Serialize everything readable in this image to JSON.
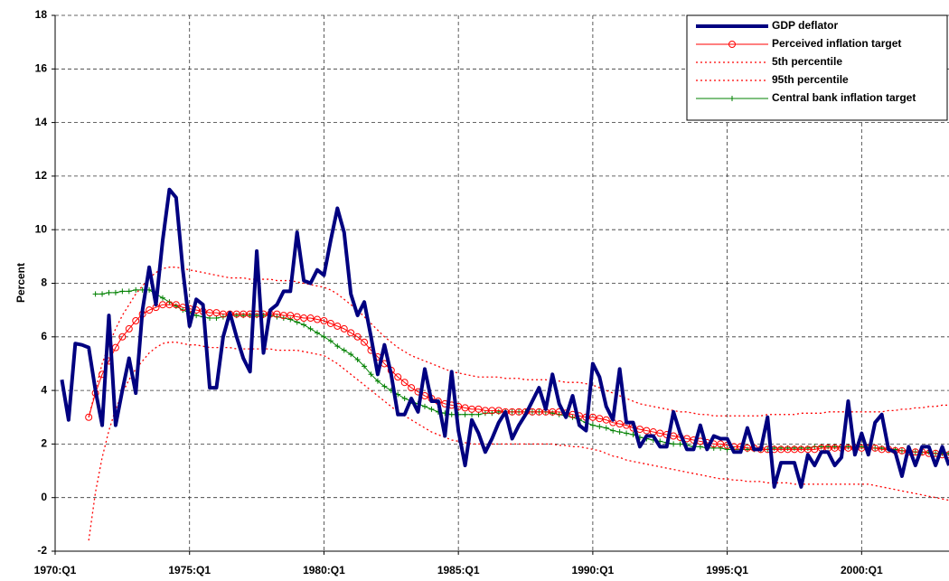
{
  "chart_data": {
    "type": "line",
    "y_label": "Percent",
    "categories": [
      "1970:Q1",
      null,
      null,
      null,
      null,
      null,
      null,
      null,
      null,
      null,
      null,
      null,
      null,
      null,
      null,
      null,
      null,
      null,
      null,
      null,
      "1975:Q1",
      null,
      null,
      null,
      null,
      null,
      null,
      null,
      null,
      null,
      null,
      null,
      null,
      null,
      null,
      null,
      null,
      null,
      null,
      null,
      "1980:Q1",
      null,
      null,
      null,
      null,
      null,
      null,
      null,
      null,
      null,
      null,
      null,
      null,
      null,
      null,
      null,
      null,
      null,
      null,
      null,
      "1985:Q1",
      null,
      null,
      null,
      null,
      null,
      null,
      null,
      null,
      null,
      null,
      null,
      null,
      null,
      null,
      null,
      null,
      null,
      null,
      null,
      "1990:Q1",
      null,
      null,
      null,
      null,
      null,
      null,
      null,
      null,
      null,
      null,
      null,
      null,
      null,
      null,
      null,
      null,
      null,
      null,
      null,
      "1995:Q1",
      null,
      null,
      null,
      null,
      null,
      null,
      null,
      null,
      null,
      null,
      null,
      null,
      null,
      null,
      null,
      null,
      null,
      null,
      null,
      "2000:Q1",
      null,
      null,
      null,
      null,
      null,
      null,
      null,
      null,
      null,
      null,
      null,
      null,
      null
    ],
    "ylim": [
      -2,
      18
    ],
    "yticks": [
      -2,
      0,
      2,
      4,
      6,
      8,
      10,
      12,
      14,
      16,
      18
    ],
    "grid": true,
    "legend": "top-right",
    "series": [
      {
        "name": "GDP deflator",
        "color": "#000080",
        "width": 4,
        "dash": false,
        "marker": "none",
        "values": [
          null,
          4.4,
          2.9,
          5.75,
          5.7,
          5.6,
          4.0,
          2.7,
          6.8,
          2.7,
          4.0,
          5.2,
          3.9,
          7.0,
          8.6,
          7.2,
          9.6,
          11.5,
          11.2,
          8.5,
          6.4,
          7.4,
          7.2,
          4.1,
          4.1,
          6.0,
          6.9,
          6.0,
          5.2,
          4.7,
          9.2,
          5.4,
          7.0,
          7.2,
          7.7,
          7.7,
          9.9,
          8.1,
          8.0,
          8.5,
          8.3,
          9.6,
          10.8,
          9.9,
          7.6,
          6.8,
          7.3,
          6.0,
          4.6,
          5.7,
          4.6,
          3.1,
          3.1,
          3.7,
          3.2,
          4.8,
          3.6,
          3.6,
          2.3,
          4.7,
          2.5,
          1.2,
          2.9,
          2.4,
          1.7,
          2.2,
          2.8,
          3.2,
          2.2,
          2.7,
          3.1,
          3.6,
          4.1,
          3.3,
          4.6,
          3.5,
          3.0,
          3.8,
          2.7,
          2.5,
          5.0,
          4.5,
          3.4,
          2.9,
          4.8,
          2.8,
          2.8,
          1.9,
          2.3,
          2.3,
          1.9,
          1.9,
          3.2,
          2.4,
          1.8,
          1.8,
          2.7,
          1.8,
          2.3,
          2.2,
          2.2,
          1.7,
          1.7,
          2.6,
          1.8,
          1.8,
          3.0,
          0.4,
          1.3,
          1.3,
          1.3,
          0.4,
          1.6,
          1.2,
          1.7,
          1.7,
          1.2,
          1.5,
          3.6,
          1.6,
          2.4,
          1.6,
          2.8,
          3.1,
          1.8,
          1.7,
          0.8,
          1.9,
          1.2,
          1.9,
          1.9,
          1.2,
          1.9,
          1.2
        ]
      },
      {
        "name": "Perceived inflation target",
        "color": "#ff0000",
        "width": 1,
        "dash": false,
        "marker": "circle",
        "values": [
          null,
          null,
          null,
          null,
          null,
          3.0,
          3.9,
          4.6,
          5.1,
          5.6,
          6.0,
          6.3,
          6.6,
          6.85,
          7.0,
          7.1,
          7.2,
          7.2,
          7.2,
          7.1,
          7.05,
          7.0,
          6.95,
          6.9,
          6.9,
          6.85,
          6.85,
          6.85,
          6.85,
          6.85,
          6.85,
          6.85,
          6.85,
          6.85,
          6.8,
          6.8,
          6.75,
          6.7,
          6.7,
          6.65,
          6.6,
          6.5,
          6.4,
          6.3,
          6.15,
          6.0,
          5.8,
          5.5,
          5.25,
          5.0,
          4.75,
          4.5,
          4.3,
          4.1,
          3.95,
          3.8,
          3.7,
          3.6,
          3.5,
          3.45,
          3.4,
          3.35,
          3.3,
          3.3,
          3.25,
          3.25,
          3.25,
          3.2,
          3.2,
          3.2,
          3.2,
          3.2,
          3.2,
          3.2,
          3.2,
          3.2,
          3.15,
          3.1,
          3.05,
          3.0,
          3.0,
          2.95,
          2.9,
          2.8,
          2.75,
          2.7,
          2.6,
          2.55,
          2.5,
          2.45,
          2.4,
          2.35,
          2.3,
          2.25,
          2.2,
          2.15,
          2.1,
          2.05,
          2.0,
          2.0,
          1.95,
          1.9,
          1.9,
          1.85,
          1.85,
          1.8,
          1.8,
          1.8,
          1.8,
          1.8,
          1.8,
          1.8,
          1.8,
          1.8,
          1.85,
          1.85,
          1.85,
          1.85,
          1.85,
          1.85,
          1.85,
          1.85,
          1.85,
          1.8,
          1.8,
          1.75,
          1.75,
          1.7,
          1.7,
          1.7,
          1.65,
          1.65,
          1.6,
          1.6
        ]
      },
      {
        "name": "5th percentile",
        "color": "#ff0000",
        "width": 1.3,
        "dash": true,
        "marker": "none",
        "values": [
          null,
          null,
          null,
          null,
          null,
          -1.6,
          0.2,
          1.5,
          2.5,
          3.3,
          3.9,
          4.4,
          4.8,
          5.1,
          5.4,
          5.6,
          5.75,
          5.8,
          5.8,
          5.75,
          5.7,
          5.7,
          5.65,
          5.6,
          5.6,
          5.6,
          5.6,
          5.55,
          5.55,
          5.55,
          5.55,
          5.55,
          5.55,
          5.5,
          5.5,
          5.5,
          5.5,
          5.45,
          5.4,
          5.35,
          5.3,
          5.15,
          5.0,
          4.8,
          4.6,
          4.4,
          4.2,
          4.0,
          3.8,
          3.6,
          3.4,
          3.2,
          3.05,
          2.9,
          2.75,
          2.6,
          2.45,
          2.35,
          2.25,
          2.15,
          2.1,
          2.05,
          2.0,
          2.0,
          2.0,
          2.0,
          2.0,
          2.0,
          2.0,
          2.0,
          2.0,
          2.0,
          2.0,
          2.0,
          2.0,
          1.95,
          1.95,
          1.9,
          1.9,
          1.85,
          1.8,
          1.75,
          1.65,
          1.55,
          1.5,
          1.4,
          1.35,
          1.3,
          1.25,
          1.2,
          1.15,
          1.1,
          1.05,
          1.0,
          0.95,
          0.9,
          0.85,
          0.8,
          0.75,
          0.7,
          0.7,
          0.65,
          0.65,
          0.6,
          0.6,
          0.6,
          0.55,
          0.55,
          0.55,
          0.55,
          0.5,
          0.5,
          0.5,
          0.5,
          0.5,
          0.5,
          0.5,
          0.5,
          0.5,
          0.5,
          0.5,
          0.5,
          0.45,
          0.4,
          0.35,
          0.3,
          0.25,
          0.2,
          0.15,
          0.1,
          0.05,
          0.0,
          -0.05,
          -0.1
        ]
      },
      {
        "name": "95th percentile",
        "color": "#ff0000",
        "width": 1.3,
        "dash": true,
        "marker": "none",
        "values": [
          null,
          null,
          null,
          null,
          null,
          3.0,
          4.0,
          5.0,
          5.7,
          6.3,
          6.8,
          7.2,
          7.6,
          7.9,
          8.2,
          8.4,
          8.55,
          8.6,
          8.6,
          8.55,
          8.5,
          8.45,
          8.4,
          8.35,
          8.3,
          8.25,
          8.2,
          8.2,
          8.2,
          8.15,
          8.15,
          8.15,
          8.15,
          8.1,
          8.1,
          8.1,
          8.05,
          8.0,
          7.95,
          7.9,
          7.85,
          7.75,
          7.6,
          7.4,
          7.2,
          7.0,
          6.75,
          6.5,
          6.25,
          6.0,
          5.8,
          5.6,
          5.45,
          5.3,
          5.2,
          5.1,
          5.0,
          4.9,
          4.8,
          4.7,
          4.65,
          4.6,
          4.55,
          4.5,
          4.5,
          4.5,
          4.5,
          4.45,
          4.45,
          4.45,
          4.4,
          4.4,
          4.4,
          4.4,
          4.35,
          4.35,
          4.3,
          4.3,
          4.3,
          4.25,
          4.2,
          4.1,
          4.0,
          3.9,
          3.8,
          3.7,
          3.6,
          3.5,
          3.45,
          3.4,
          3.35,
          3.3,
          3.25,
          3.2,
          3.2,
          3.15,
          3.1,
          3.1,
          3.05,
          3.05,
          3.05,
          3.05,
          3.05,
          3.05,
          3.05,
          3.05,
          3.1,
          3.1,
          3.1,
          3.1,
          3.1,
          3.15,
          3.15,
          3.15,
          3.15,
          3.2,
          3.2,
          3.2,
          3.2,
          3.2,
          3.2,
          3.2,
          3.2,
          3.2,
          3.25,
          3.25,
          3.3,
          3.3,
          3.35,
          3.35,
          3.4,
          3.4,
          3.45,
          3.45
        ]
      },
      {
        "name": "Central bank inflation target",
        "color": "#008000",
        "width": 1,
        "dash": false,
        "marker": "plus",
        "values": [
          null,
          null,
          null,
          null,
          null,
          null,
          7.6,
          7.6,
          7.65,
          7.65,
          7.7,
          7.7,
          7.75,
          7.75,
          7.75,
          7.6,
          7.45,
          7.3,
          7.15,
          7.0,
          6.9,
          6.8,
          6.75,
          6.7,
          6.7,
          6.75,
          6.8,
          6.8,
          6.8,
          6.8,
          6.8,
          6.8,
          6.8,
          6.75,
          6.7,
          6.65,
          6.55,
          6.45,
          6.3,
          6.15,
          6.0,
          5.85,
          5.65,
          5.5,
          5.35,
          5.15,
          4.9,
          4.6,
          4.35,
          4.15,
          4.0,
          3.85,
          3.7,
          3.6,
          3.5,
          3.4,
          3.3,
          3.2,
          3.15,
          3.1,
          3.1,
          3.1,
          3.1,
          3.1,
          3.15,
          3.15,
          3.2,
          3.2,
          3.2,
          3.2,
          3.2,
          3.2,
          3.2,
          3.2,
          3.15,
          3.1,
          3.05,
          3.0,
          2.9,
          2.8,
          2.7,
          2.65,
          2.6,
          2.5,
          2.45,
          2.4,
          2.35,
          2.25,
          2.2,
          2.15,
          2.1,
          2.05,
          2.0,
          2.0,
          1.95,
          1.9,
          1.9,
          1.85,
          1.85,
          1.85,
          1.8,
          1.8,
          1.8,
          1.8,
          1.8,
          1.8,
          1.8,
          1.85,
          1.85,
          1.85,
          1.85,
          1.85,
          1.85,
          1.9,
          1.9,
          1.9,
          1.9,
          1.9,
          1.9,
          1.9,
          1.9,
          1.85,
          1.85,
          1.85,
          1.8,
          1.8,
          1.75,
          1.75,
          1.7,
          1.7,
          1.7,
          1.65,
          1.65,
          1.65
        ]
      }
    ]
  }
}
